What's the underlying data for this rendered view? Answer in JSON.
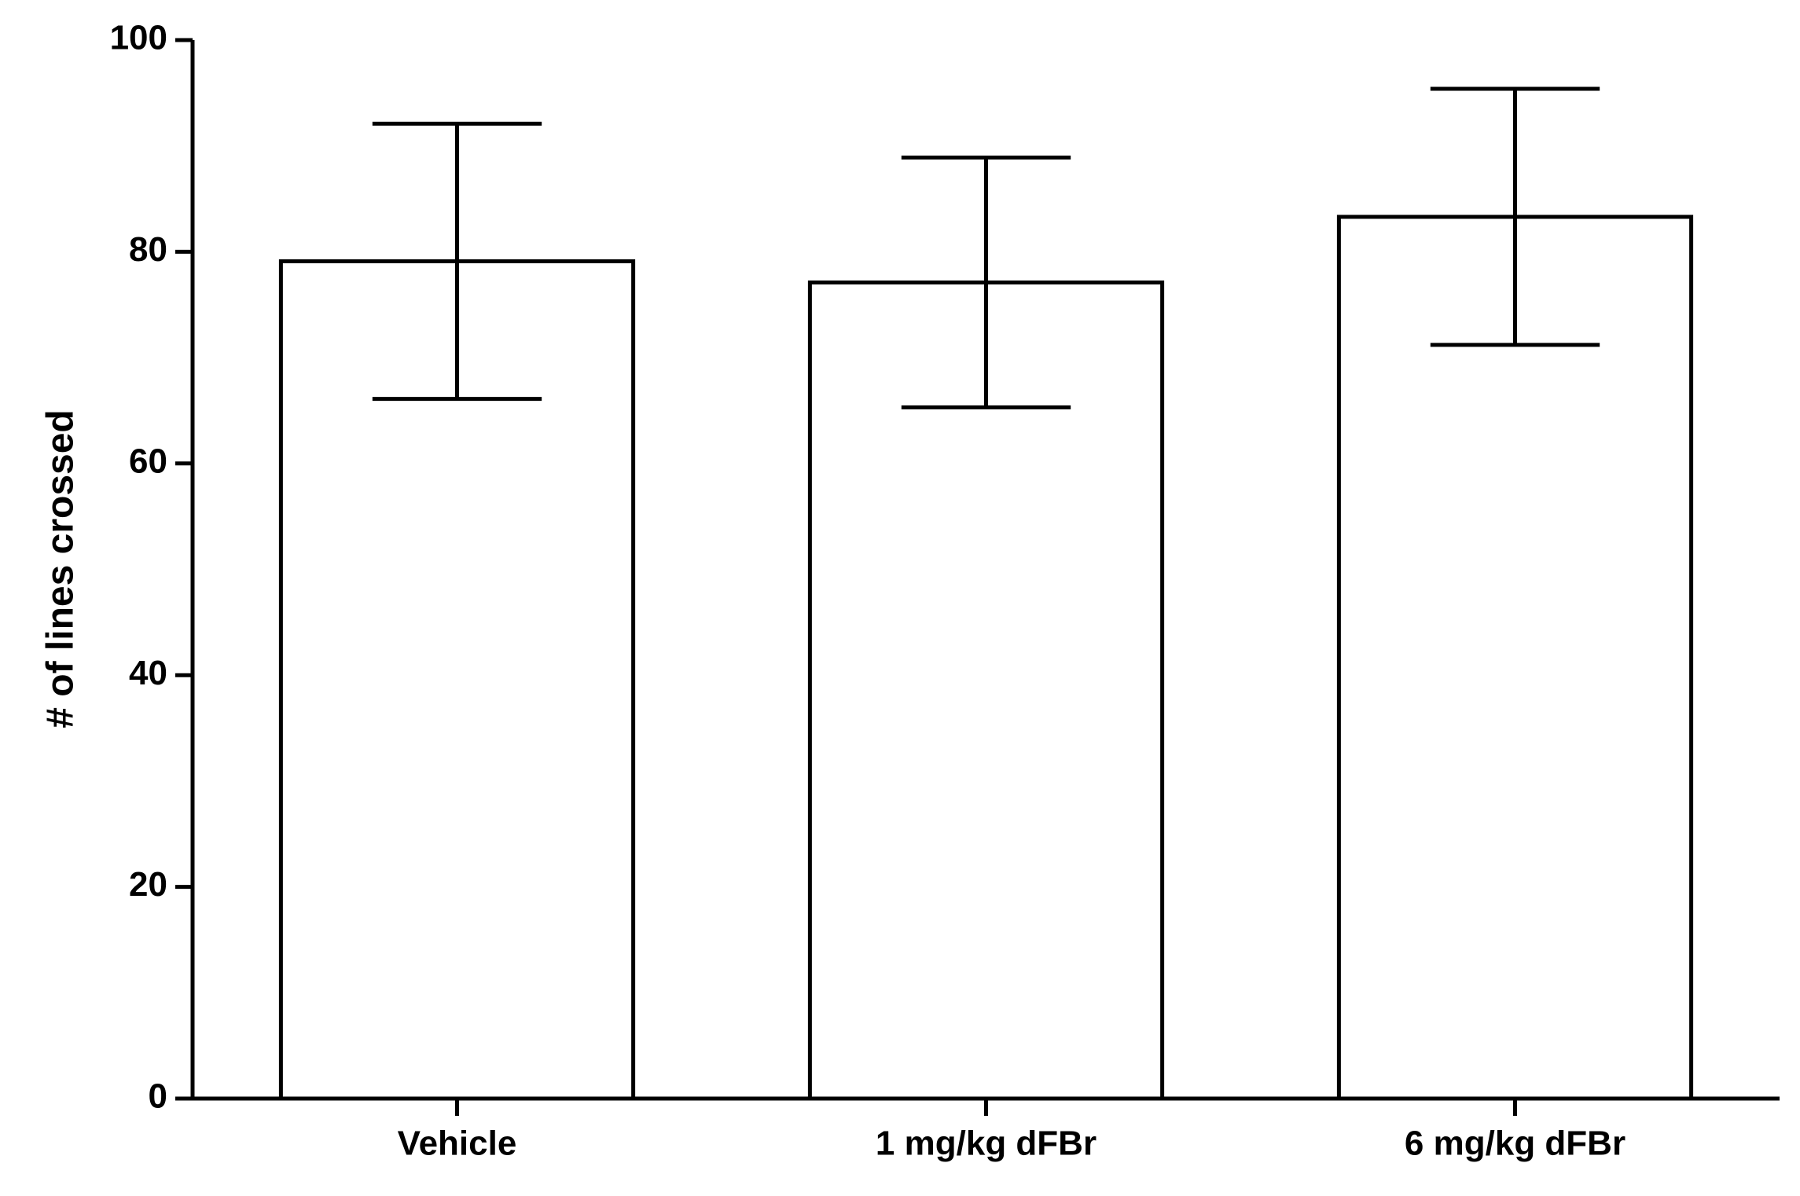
{
  "chart_data": {
    "type": "bar",
    "y_label": "# of lines crossed",
    "categories": [
      "Vehicle",
      "1 mg/kg dFBr",
      "6 mg/kg dFBr"
    ],
    "values": [
      79.1,
      77.1,
      83.3
    ],
    "errors": [
      13,
      11.8,
      12.1
    ],
    "color": "#ffffff",
    "ylim": [
      0,
      100
    ],
    "yticks": [
      0,
      20,
      40,
      60,
      80,
      100
    ],
    "grid": false
  }
}
